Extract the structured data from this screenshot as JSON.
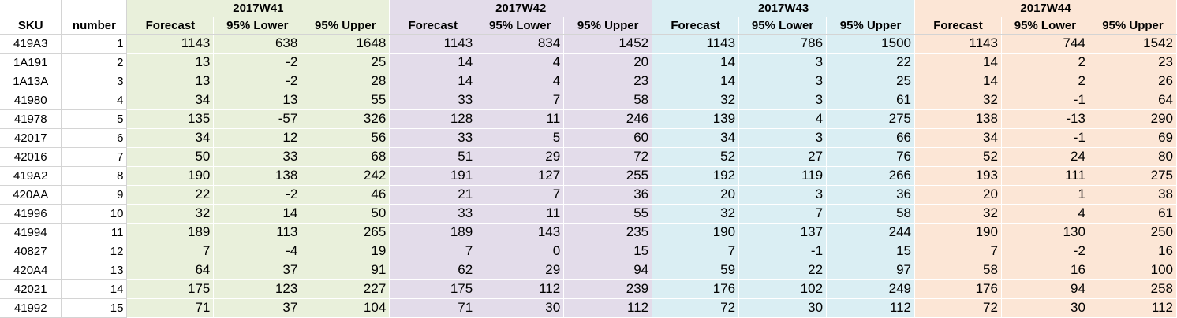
{
  "colors": {
    "week_bg": [
      "#e9f0db",
      "#e3dcea",
      "#daeef3",
      "#fce6d6"
    ],
    "gridline": "#d4d4d4"
  },
  "sheet": {
    "header": {
      "sku_label": "SKU",
      "number_label": "number",
      "weeks": [
        "2017W41",
        "2017W42",
        "2017W43",
        "2017W44"
      ],
      "subcols": [
        "Forecast",
        "95% Lower",
        "95% Upper"
      ]
    },
    "rows": [
      {
        "sku": "419A3",
        "number": "1",
        "values": [
          [
            "1143",
            "638",
            "1648"
          ],
          [
            "1143",
            "834",
            "1452"
          ],
          [
            "1143",
            "786",
            "1500"
          ],
          [
            "1143",
            "744",
            "1542"
          ]
        ]
      },
      {
        "sku": "1A191",
        "number": "2",
        "values": [
          [
            "13",
            "-2",
            "25"
          ],
          [
            "14",
            "4",
            "20"
          ],
          [
            "14",
            "3",
            "22"
          ],
          [
            "14",
            "2",
            "23"
          ]
        ]
      },
      {
        "sku": "1A13A",
        "number": "3",
        "values": [
          [
            "13",
            "-2",
            "28"
          ],
          [
            "14",
            "4",
            "23"
          ],
          [
            "14",
            "3",
            "25"
          ],
          [
            "14",
            "2",
            "26"
          ]
        ]
      },
      {
        "sku": "41980",
        "number": "4",
        "values": [
          [
            "34",
            "13",
            "55"
          ],
          [
            "33",
            "7",
            "58"
          ],
          [
            "32",
            "3",
            "61"
          ],
          [
            "32",
            "-1",
            "64"
          ]
        ]
      },
      {
        "sku": "41978",
        "number": "5",
        "values": [
          [
            "135",
            "-57",
            "326"
          ],
          [
            "128",
            "11",
            "246"
          ],
          [
            "139",
            "4",
            "275"
          ],
          [
            "138",
            "-13",
            "290"
          ]
        ]
      },
      {
        "sku": "42017",
        "number": "6",
        "values": [
          [
            "34",
            "12",
            "56"
          ],
          [
            "33",
            "5",
            "60"
          ],
          [
            "34",
            "3",
            "66"
          ],
          [
            "34",
            "-1",
            "69"
          ]
        ]
      },
      {
        "sku": "42016",
        "number": "7",
        "values": [
          [
            "50",
            "33",
            "68"
          ],
          [
            "51",
            "29",
            "72"
          ],
          [
            "52",
            "27",
            "76"
          ],
          [
            "52",
            "24",
            "80"
          ]
        ]
      },
      {
        "sku": "419A2",
        "number": "8",
        "values": [
          [
            "190",
            "138",
            "242"
          ],
          [
            "191",
            "127",
            "255"
          ],
          [
            "192",
            "119",
            "266"
          ],
          [
            "193",
            "111",
            "275"
          ]
        ]
      },
      {
        "sku": "420AA",
        "number": "9",
        "values": [
          [
            "22",
            "-2",
            "46"
          ],
          [
            "21",
            "7",
            "36"
          ],
          [
            "20",
            "3",
            "36"
          ],
          [
            "20",
            "1",
            "38"
          ]
        ]
      },
      {
        "sku": "41996",
        "number": "10",
        "values": [
          [
            "32",
            "14",
            "50"
          ],
          [
            "33",
            "11",
            "55"
          ],
          [
            "32",
            "7",
            "58"
          ],
          [
            "32",
            "4",
            "61"
          ]
        ]
      },
      {
        "sku": "41994",
        "number": "11",
        "values": [
          [
            "189",
            "113",
            "265"
          ],
          [
            "189",
            "143",
            "235"
          ],
          [
            "190",
            "137",
            "244"
          ],
          [
            "190",
            "130",
            "250"
          ]
        ]
      },
      {
        "sku": "40827",
        "number": "12",
        "values": [
          [
            "7",
            "-4",
            "19"
          ],
          [
            "7",
            "0",
            "15"
          ],
          [
            "7",
            "-1",
            "15"
          ],
          [
            "7",
            "-2",
            "16"
          ]
        ]
      },
      {
        "sku": "420A4",
        "number": "13",
        "values": [
          [
            "64",
            "37",
            "91"
          ],
          [
            "62",
            "29",
            "94"
          ],
          [
            "59",
            "22",
            "97"
          ],
          [
            "58",
            "16",
            "100"
          ]
        ]
      },
      {
        "sku": "42021",
        "number": "14",
        "values": [
          [
            "175",
            "123",
            "227"
          ],
          [
            "175",
            "112",
            "239"
          ],
          [
            "176",
            "102",
            "249"
          ],
          [
            "176",
            "94",
            "258"
          ]
        ]
      },
      {
        "sku": "41992",
        "number": "15",
        "values": [
          [
            "71",
            "37",
            "104"
          ],
          [
            "71",
            "30",
            "112"
          ],
          [
            "72",
            "30",
            "112"
          ],
          [
            "72",
            "30",
            "112"
          ]
        ]
      }
    ]
  }
}
